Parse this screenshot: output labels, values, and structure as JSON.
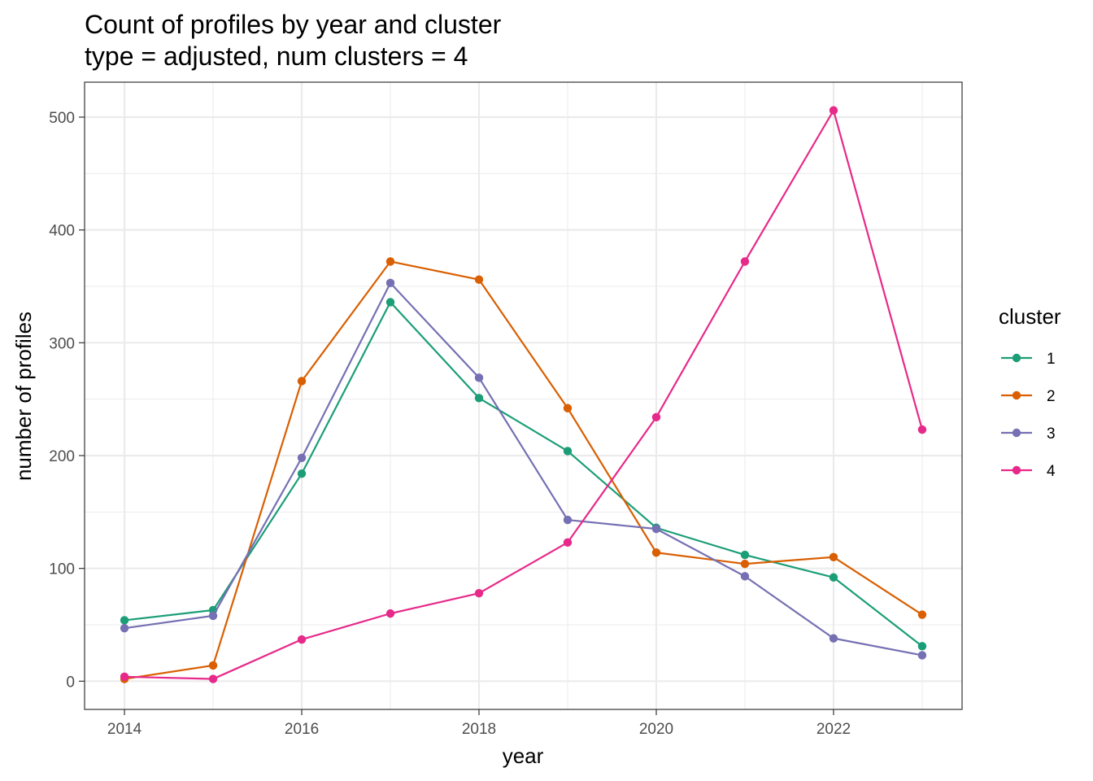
{
  "chart_data": {
    "type": "line",
    "title": "Count of profiles by year and cluster",
    "subtitle": "type = adjusted, num clusters = 4",
    "xlabel": "year",
    "ylabel": "number of profiles",
    "x": [
      2014,
      2015,
      2016,
      2017,
      2018,
      2019,
      2020,
      2021,
      2022,
      2023
    ],
    "xlim": [
      2013.55,
      2023.45
    ],
    "ylim": [
      -25,
      531
    ],
    "x_ticks": [
      2014,
      2016,
      2018,
      2020,
      2022
    ],
    "y_ticks": [
      0,
      100,
      200,
      300,
      400,
      500
    ],
    "grid": true,
    "legend": {
      "title": "cluster",
      "position": "right"
    },
    "series": [
      {
        "name": "1",
        "color": "#1b9e77",
        "values": [
          54,
          63,
          184,
          336,
          251,
          204,
          136,
          112,
          92,
          31
        ]
      },
      {
        "name": "2",
        "color": "#d95f02",
        "values": [
          2,
          14,
          266,
          372,
          356,
          242,
          114,
          104,
          110,
          59
        ]
      },
      {
        "name": "3",
        "color": "#7570b3",
        "values": [
          47,
          58,
          198,
          353,
          269,
          143,
          135,
          93,
          38,
          23
        ]
      },
      {
        "name": "4",
        "color": "#e7298a",
        "values": [
          4,
          2,
          37,
          60,
          78,
          123,
          234,
          372,
          506,
          223
        ]
      }
    ]
  }
}
